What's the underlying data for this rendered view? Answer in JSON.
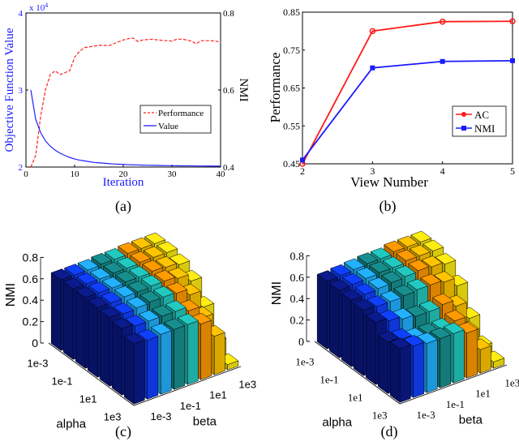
{
  "chart_data": [
    {
      "panel": "(a)",
      "type": "line",
      "xlabel": "Iteration",
      "ylabel_left": "Objective Function Value",
      "ylabel_right": "NMI",
      "left_multiplier": "x 10",
      "left_multiplier_exp": "4",
      "xlim": [
        0,
        40
      ],
      "ylim_left": [
        2,
        4
      ],
      "ylim_right": [
        0.4,
        0.8
      ],
      "xticks": [
        "0",
        "10",
        "20",
        "30",
        "40"
      ],
      "yticks_left": [
        "2",
        "3",
        "4"
      ],
      "yticks_right": [
        "0.4",
        "0.6",
        "0.8"
      ],
      "legend": [
        "Performance",
        "Value"
      ],
      "legend_position": "center-right",
      "colors": {
        "left_axis": "#1a1aff",
        "performance": "#ff2020",
        "value": "#2020ff"
      },
      "x": [
        1,
        2,
        3,
        4,
        5,
        6,
        7,
        8,
        9,
        10,
        11,
        12,
        13,
        14,
        15,
        16,
        17,
        18,
        19,
        20,
        21,
        22,
        23,
        24,
        25,
        26,
        27,
        28,
        29,
        30,
        31,
        32,
        33,
        34,
        35,
        36,
        37,
        38,
        39,
        40
      ],
      "series": [
        {
          "name": "Performance",
          "axis": "right",
          "values": [
            0.4,
            0.43,
            0.53,
            0.6,
            0.64,
            0.65,
            0.64,
            0.645,
            0.65,
            0.685,
            0.7,
            0.71,
            0.712,
            0.714,
            0.716,
            0.716,
            0.715,
            0.72,
            0.725,
            0.73,
            0.733,
            0.735,
            0.726,
            0.73,
            0.731,
            0.732,
            0.73,
            0.729,
            0.728,
            0.727,
            0.732,
            0.732,
            0.73,
            0.727,
            0.72,
            0.728,
            0.728,
            0.728,
            0.727,
            0.724
          ]
        },
        {
          "name": "Value",
          "axis": "left",
          "values": [
            3.0,
            2.62,
            2.45,
            2.34,
            2.27,
            2.22,
            2.18,
            2.15,
            2.125,
            2.105,
            2.09,
            2.08,
            2.07,
            2.06,
            2.055,
            2.05,
            2.045,
            2.04,
            2.037,
            2.034,
            2.031,
            2.029,
            2.027,
            2.025,
            2.023,
            2.022,
            2.021,
            2.02,
            2.019,
            2.018,
            2.017,
            2.016,
            2.015,
            2.015,
            2.014,
            2.014,
            2.013,
            2.013,
            2.012,
            2.012
          ]
        }
      ]
    },
    {
      "panel": "(b)",
      "type": "line",
      "xlabel": "View Number",
      "ylabel": "Performance",
      "xlim": [
        2,
        5
      ],
      "ylim": [
        0.45,
        0.85
      ],
      "xticks": [
        "2",
        "3",
        "4",
        "5"
      ],
      "yticks": [
        "0.45",
        "0.55",
        "0.65",
        "0.75",
        "0.85"
      ],
      "legend": [
        "AC",
        "NMI"
      ],
      "legend_position": "center-right",
      "x": [
        2,
        3,
        4,
        5
      ],
      "series": [
        {
          "name": "AC",
          "marker": "circle",
          "color": "#ff1a1a",
          "values": [
            0.45,
            0.8,
            0.825,
            0.826
          ]
        },
        {
          "name": "NMI",
          "marker": "square",
          "color": "#1a1aff",
          "values": [
            0.46,
            0.703,
            0.72,
            0.722
          ]
        }
      ]
    },
    {
      "panel": "(c)",
      "type": "bar3d",
      "zlabel": "NMI",
      "xlabel": "alpha",
      "ylabel": "beta",
      "zlim": [
        0,
        0.8
      ],
      "zticks": [
        "0",
        "0.2",
        "0.4",
        "0.6",
        "0.8"
      ],
      "alpha_ticks": [
        "1e-3",
        "1e-1",
        "1e1",
        "1e3"
      ],
      "beta_ticks": [
        "1e-3",
        "1e-1",
        "1e1",
        "1e3"
      ],
      "beta_colors": [
        "#0b1a8c",
        "#1040ff",
        "#22b2ff",
        "#178f8f",
        "#22c9c0",
        "#ff9a00",
        "#ffc400",
        "#ffec10"
      ],
      "values": [
        [
          0.66,
          0.66,
          0.66,
          0.67,
          0.67,
          0.68,
          0.68,
          0.68
        ],
        [
          0.66,
          0.66,
          0.66,
          0.67,
          0.67,
          0.68,
          0.68,
          0.68
        ],
        [
          0.66,
          0.66,
          0.66,
          0.67,
          0.67,
          0.68,
          0.67,
          0.65
        ],
        [
          0.65,
          0.65,
          0.66,
          0.66,
          0.67,
          0.67,
          0.65,
          0.58
        ],
        [
          0.64,
          0.63,
          0.64,
          0.65,
          0.65,
          0.64,
          0.58,
          0.42
        ],
        [
          0.62,
          0.6,
          0.6,
          0.6,
          0.6,
          0.56,
          0.45,
          0.18
        ],
        [
          0.56,
          0.55,
          0.56,
          0.56,
          0.56,
          0.52,
          0.36,
          0.05
        ]
      ]
    },
    {
      "panel": "(d)",
      "type": "bar3d",
      "zlabel": "NMI",
      "xlabel": "alpha",
      "ylabel": "beta",
      "zlim": [
        0,
        0.8
      ],
      "zticks": [
        "0",
        "0.2",
        "0.4",
        "0.6",
        "0.8"
      ],
      "alpha_ticks": [
        "1e-3",
        "1e-1",
        "1e1",
        "1e3"
      ],
      "beta_ticks": [
        "1e-3",
        "1e-1",
        "1e1",
        "1e3"
      ],
      "beta_colors": [
        "#0b1a8c",
        "#1040ff",
        "#22b2ff",
        "#178f8f",
        "#22c9c0",
        "#ff9a00",
        "#ffc400",
        "#ffec10"
      ],
      "values": [
        [
          0.63,
          0.64,
          0.65,
          0.66,
          0.66,
          0.68,
          0.68,
          0.68
        ],
        [
          0.63,
          0.64,
          0.65,
          0.66,
          0.66,
          0.68,
          0.68,
          0.68
        ],
        [
          0.62,
          0.63,
          0.64,
          0.65,
          0.66,
          0.67,
          0.66,
          0.64
        ],
        [
          0.61,
          0.6,
          0.6,
          0.61,
          0.62,
          0.62,
          0.6,
          0.52
        ],
        [
          0.58,
          0.55,
          0.52,
          0.5,
          0.5,
          0.52,
          0.46,
          0.3
        ],
        [
          0.48,
          0.46,
          0.42,
          0.42,
          0.42,
          0.45,
          0.3,
          0.12
        ],
        [
          0.5,
          0.48,
          0.46,
          0.46,
          0.46,
          0.42,
          0.22,
          0.06
        ]
      ]
    }
  ],
  "captions": [
    "(a)",
    "(b)",
    "(c)",
    "(d)"
  ]
}
